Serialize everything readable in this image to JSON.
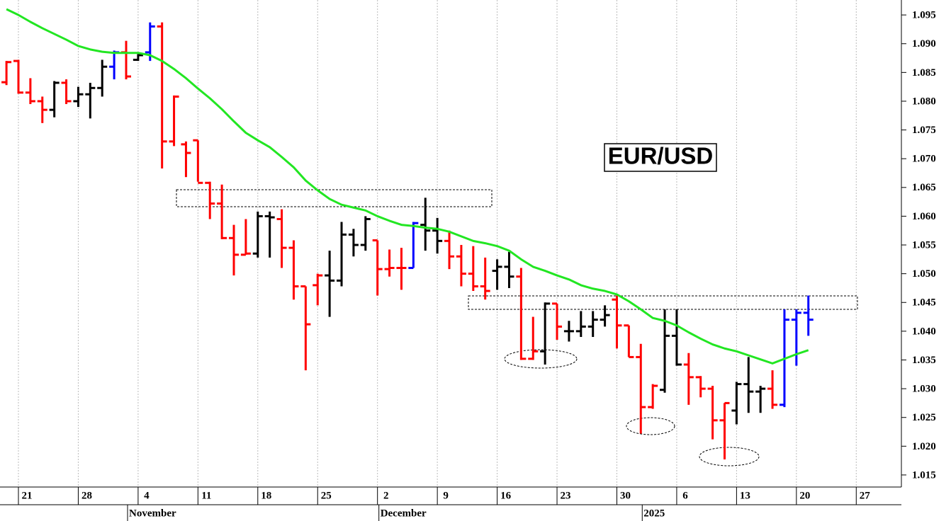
{
  "chart_data": {
    "type": "ohlc",
    "title": "EUR/USD",
    "categories": [
      null,
      "21",
      null,
      null,
      null,
      null,
      "28",
      null,
      null,
      null,
      null,
      "4",
      null,
      null,
      null,
      null,
      "11",
      null,
      null,
      null,
      null,
      "18",
      null,
      null,
      null,
      null,
      "25",
      null,
      null,
      null,
      null,
      "2",
      null,
      null,
      null,
      null,
      "9",
      null,
      null,
      null,
      null,
      "16",
      null,
      null,
      null,
      null,
      "23",
      null,
      null,
      null,
      null,
      "30",
      null,
      null,
      null,
      null,
      "6",
      null,
      null,
      null,
      null,
      "13",
      null,
      null,
      null,
      null,
      "20",
      null,
      null,
      null,
      null,
      "27",
      null,
      null
    ],
    "month_labels": [
      null,
      null,
      null,
      null,
      null,
      null,
      null,
      null,
      null,
      null,
      "November",
      null,
      null,
      null,
      null,
      null,
      null,
      null,
      null,
      null,
      null,
      null,
      null,
      null,
      null,
      null,
      null,
      null,
      null,
      null,
      null,
      "December",
      null,
      null,
      null,
      null,
      null,
      null,
      null,
      null,
      null,
      null,
      null,
      null,
      null,
      null,
      null,
      null,
      null,
      null,
      null,
      null,
      null,
      "2025",
      null,
      null,
      null,
      null,
      null,
      null,
      null,
      null,
      null,
      null,
      null,
      null,
      null,
      null,
      null,
      null,
      null,
      null,
      null,
      null
    ],
    "open": [
      1.0833,
      1.087,
      1.0815,
      1.08,
      1.0785,
      1.0832,
      1.08,
      1.0812,
      1.0823,
      1.086,
      1.0885,
      1.0872,
      1.0885,
      1.093,
      1.073,
      1.0725,
      1.0732,
      1.0658,
      1.0622,
      1.0562,
      1.0533,
      1.0535,
      1.06,
      1.0595,
      1.0545,
      1.0478,
      1.048,
      1.0497,
      1.0488,
      1.0568,
      1.055,
      1.0558,
      1.0508,
      1.051,
      1.051,
      1.0585,
      1.0575,
      1.0557,
      1.053,
      1.05,
      1.0478,
      1.0505,
      1.0512,
      1.0495,
      1.0352,
      1.0365,
      1.0448,
      1.04,
      1.04,
      1.0408,
      1.042,
      1.0455,
      1.041,
      1.0355,
      1.0268,
      1.0298,
      1.0392,
      1.0342,
      1.032,
      1.03,
      1.0245,
      1.0262,
      1.0308,
      1.0295,
      1.03,
      1.0272,
      1.042,
      1.0432,
      null,
      null,
      null,
      null,
      null,
      null
    ],
    "high": [
      1.087,
      1.0872,
      1.084,
      1.0808,
      1.0835,
      1.0838,
      1.0825,
      1.0832,
      1.0872,
      1.0888,
      1.0905,
      1.0882,
      1.0937,
      1.0937,
      1.081,
      1.073,
      1.0732,
      1.066,
      1.0655,
      1.0585,
      1.0595,
      1.0608,
      1.0608,
      1.0612,
      1.0558,
      1.0478,
      1.05,
      1.054,
      1.059,
      1.0578,
      1.06,
      1.0558,
      1.0542,
      1.0545,
      1.059,
      1.0632,
      1.0597,
      1.0575,
      1.055,
      1.0548,
      1.0528,
      1.0525,
      1.0538,
      1.051,
      1.0425,
      1.045,
      1.0448,
      1.0418,
      1.0435,
      1.0435,
      1.0445,
      1.0462,
      1.041,
      1.0378,
      1.0308,
      1.0438,
      1.0438,
      1.0362,
      1.0322,
      1.0305,
      1.0275,
      1.0312,
      1.0355,
      1.0305,
      1.0332,
      1.0438,
      1.0438,
      1.0462,
      null,
      null,
      null,
      null,
      null,
      null
    ],
    "low": [
      1.0828,
      1.0813,
      1.0795,
      1.0762,
      1.0772,
      1.0795,
      1.079,
      1.077,
      1.0808,
      1.0838,
      1.0838,
      1.087,
      1.087,
      1.0683,
      1.0722,
      1.0668,
      1.066,
      1.0595,
      1.056,
      1.0497,
      1.0533,
      1.0528,
      1.0528,
      1.051,
      1.0455,
      1.0332,
      1.0445,
      1.0425,
      1.0478,
      1.053,
      1.054,
      1.0462,
      1.0495,
      1.0472,
      1.051,
      1.054,
      1.0535,
      1.0508,
      1.0478,
      1.047,
      1.0455,
      1.0472,
      1.0475,
      1.035,
      1.035,
      1.0342,
      1.0385,
      1.0382,
      1.039,
      1.039,
      1.0408,
      1.037,
      1.0355,
      1.0222,
      1.0265,
      1.0293,
      1.034,
      1.0272,
      1.0285,
      1.0212,
      1.0177,
      1.0238,
      1.0258,
      1.0258,
      1.0265,
      1.0268,
      1.034,
      1.0392,
      null,
      null,
      null,
      null,
      null,
      null
    ],
    "close": [
      1.0868,
      1.0815,
      1.08,
      1.0785,
      1.0832,
      1.08,
      1.0812,
      1.0823,
      1.086,
      1.0885,
      1.0843,
      1.088,
      1.093,
      1.073,
      1.0808,
      1.071,
      1.0658,
      1.0622,
      1.0562,
      1.0533,
      1.0535,
      1.06,
      1.0598,
      1.0545,
      1.0478,
      1.0412,
      1.0497,
      1.0488,
      1.0568,
      1.055,
      1.0595,
      1.0508,
      1.051,
      1.051,
      1.0588,
      1.0575,
      1.0557,
      1.053,
      1.05,
      1.0478,
      1.047,
      1.0512,
      1.0495,
      1.0352,
      1.0365,
      1.0448,
      1.0408,
      1.04,
      1.0408,
      1.042,
      1.0428,
      1.041,
      1.0355,
      1.0268,
      1.0305,
      1.0392,
      1.0342,
      1.032,
      1.03,
      1.0245,
      1.0275,
      1.0308,
      1.0295,
      1.03,
      1.0272,
      1.042,
      1.0432,
      1.042,
      null,
      null,
      null,
      null,
      null,
      null
    ],
    "colors": [
      "#ff0000",
      "#ff0000",
      "#ff0000",
      "#ff0000",
      "#000000",
      "#ff0000",
      "#000000",
      "#000000",
      "#000000",
      "#0000ff",
      "#ff0000",
      "#000000",
      "#0000ff",
      "#ff0000",
      "#ff0000",
      "#ff0000",
      "#ff0000",
      "#ff0000",
      "#ff0000",
      "#ff0000",
      "#ff0000",
      "#000000",
      "#000000",
      "#ff0000",
      "#ff0000",
      "#ff0000",
      "#ff0000",
      "#000000",
      "#000000",
      "#000000",
      "#000000",
      "#ff0000",
      "#ff0000",
      "#ff0000",
      "#0000ff",
      "#000000",
      "#000000",
      "#ff0000",
      "#ff0000",
      "#ff0000",
      "#ff0000",
      "#000000",
      "#000000",
      "#ff0000",
      "#ff0000",
      "#000000",
      "#ff0000",
      "#000000",
      "#000000",
      "#000000",
      "#000000",
      "#ff0000",
      "#ff0000",
      "#ff0000",
      "#ff0000",
      "#000000",
      "#000000",
      "#ff0000",
      "#ff0000",
      "#ff0000",
      "#ff0000",
      "#000000",
      "#000000",
      "#000000",
      "#ff0000",
      "#0000ff",
      "#0000ff",
      "#0000ff",
      null,
      null,
      null,
      null,
      null,
      null
    ],
    "moving_average": {
      "color": "#22e622",
      "values": [
        1.096,
        1.095,
        1.0938,
        1.0927,
        1.0917,
        1.0907,
        1.0896,
        1.089,
        1.0886,
        1.0884,
        1.0884,
        1.0884,
        1.088,
        1.087,
        1.0856,
        1.084,
        1.0822,
        1.0805,
        1.0786,
        1.0765,
        1.0745,
        1.0732,
        1.072,
        1.0703,
        1.0685,
        1.0662,
        1.0645,
        1.063,
        1.062,
        1.0615,
        1.061,
        1.06,
        1.0592,
        1.0585,
        1.0583,
        1.058,
        1.0578,
        1.0573,
        1.0565,
        1.0557,
        1.0553,
        1.0548,
        1.054,
        1.0525,
        1.0512,
        1.0505,
        1.0497,
        1.049,
        1.048,
        1.0474,
        1.047,
        1.0464,
        1.0452,
        1.0438,
        1.0423,
        1.0418,
        1.041,
        1.0398,
        1.0387,
        1.0377,
        1.037,
        1.0365,
        1.0358,
        1.0351,
        1.0344,
        1.0352,
        1.036,
        1.0367,
        null,
        null,
        null,
        null,
        null,
        null
      ]
    },
    "ylim": [
      1.0129,
      1.0976
    ],
    "yticks": [
      1.015,
      {
        "value": 1.02,
        "label": "1.020"
      },
      1.025,
      {
        "value": 1.03,
        "label": "1.030"
      },
      1.035,
      {
        "value": 1.04,
        "label": "1.040"
      },
      1.045,
      {
        "value": 1.05,
        "label": "1.050"
      },
      1.055,
      {
        "value": 1.06,
        "label": "1.060"
      },
      1.065,
      {
        "value": 1.07,
        "label": "1.070"
      },
      1.075,
      {
        "value": 1.08,
        "label": "1.080"
      },
      1.085,
      {
        "value": 1.09,
        "label": "1.090"
      },
      1.095
    ],
    "grid": true,
    "y_axis_side": "right"
  }
}
